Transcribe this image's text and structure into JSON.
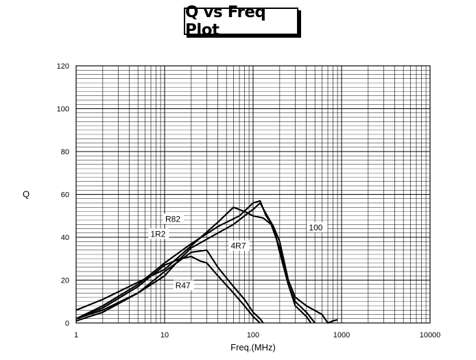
{
  "chart_data": {
    "type": "line",
    "title": "Q vs Freq Plot",
    "xlabel": "Freq.(MHz)",
    "ylabel": "Q",
    "x_scale": "log",
    "xlim": [
      1,
      10000
    ],
    "ylim": [
      0,
      120
    ],
    "x_ticks": [
      "1",
      "10",
      "100",
      "1000",
      "10000"
    ],
    "y_ticks": [
      "0",
      "20",
      "40",
      "60",
      "80",
      "100",
      "120"
    ],
    "grid": true,
    "series": [
      {
        "name": "R82",
        "points": [
          [
            1,
            6
          ],
          [
            2,
            11
          ],
          [
            5,
            19
          ],
          [
            10,
            25
          ],
          [
            20,
            36
          ],
          [
            40,
            47
          ],
          [
            60,
            54
          ],
          [
            80,
            52
          ],
          [
            100,
            50
          ],
          [
            130,
            49
          ],
          [
            160,
            46
          ],
          [
            200,
            35
          ],
          [
            250,
            18
          ],
          [
            300,
            10
          ],
          [
            400,
            5
          ],
          [
            500,
            0
          ]
        ]
      },
      {
        "name": "1R2",
        "points": [
          [
            1,
            2
          ],
          [
            2,
            8
          ],
          [
            5,
            18
          ],
          [
            10,
            28
          ],
          [
            20,
            37
          ],
          [
            40,
            45
          ],
          [
            70,
            50
          ],
          [
            100,
            56
          ],
          [
            120,
            57
          ],
          [
            140,
            50
          ],
          [
            170,
            45
          ],
          [
            200,
            33
          ],
          [
            250,
            18
          ],
          [
            300,
            8
          ],
          [
            400,
            3
          ],
          [
            450,
            0
          ]
        ]
      },
      {
        "name": "4R7",
        "points": [
          [
            1,
            2
          ],
          [
            2,
            6
          ],
          [
            5,
            14
          ],
          [
            10,
            22
          ],
          [
            15,
            30
          ],
          [
            20,
            35
          ],
          [
            40,
            42
          ],
          [
            60,
            46
          ],
          [
            80,
            50
          ],
          [
            100,
            53
          ],
          [
            120,
            56
          ],
          [
            140,
            51
          ],
          [
            170,
            45
          ],
          [
            200,
            38
          ],
          [
            250,
            20
          ],
          [
            300,
            12
          ],
          [
            400,
            8
          ],
          [
            600,
            4
          ],
          [
            700,
            0
          ],
          [
            800,
            1
          ],
          [
            900,
            1.5
          ]
        ]
      },
      {
        "name": "R47",
        "points": [
          [
            1,
            1
          ],
          [
            2,
            5
          ],
          [
            5,
            14
          ],
          [
            10,
            24
          ],
          [
            20,
            33
          ],
          [
            30,
            34
          ],
          [
            40,
            26
          ],
          [
            60,
            17
          ],
          [
            80,
            11
          ],
          [
            100,
            5
          ],
          [
            120,
            2
          ],
          [
            130,
            0
          ]
        ]
      },
      {
        "name": "100",
        "points": [
          [
            1,
            2
          ],
          [
            2,
            7
          ],
          [
            5,
            17
          ],
          [
            10,
            27
          ],
          [
            15,
            30
          ],
          [
            20,
            31
          ],
          [
            25,
            29
          ],
          [
            30,
            28
          ],
          [
            40,
            22
          ],
          [
            60,
            14
          ],
          [
            80,
            8
          ],
          [
            100,
            3
          ],
          [
            120,
            0
          ]
        ]
      }
    ]
  }
}
